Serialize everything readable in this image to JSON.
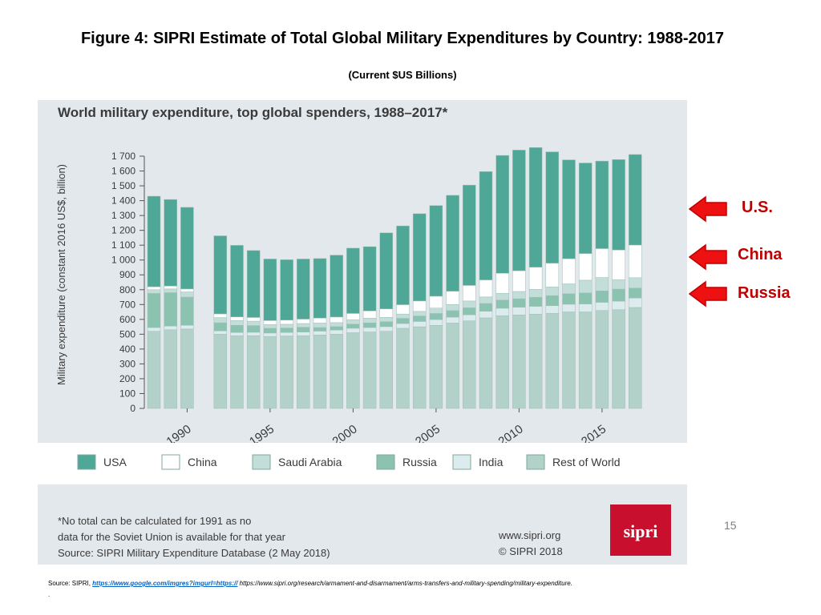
{
  "slide": {
    "title": "Figure 4: SIPRI Estimate of Total Global Military Expenditures by Country: 1988-2017",
    "subtitle": "(Current $US Billions)",
    "page_number": "15",
    "source_label": "Source: SIPRI,",
    "source_link": "https://www.google.com/imgres?imgurl=https://",
    "source_rest": "https://www.sipri.org/research/armament-and-disarmament/arms-transfers-and-military-spending/military-expenditure.",
    "trailing_dot": "."
  },
  "callouts": [
    {
      "label": "U.S.",
      "color": "#c00000"
    },
    {
      "label": "China",
      "color": "#c00000"
    },
    {
      "label": "Russia",
      "color": "#c00000"
    }
  ],
  "figure": {
    "footnote_1": "*No total can be calculated for 1991 as no",
    "footnote_2": "data for the Soviet Union is available for that year",
    "footnote_3": "Source: SIPRI Military Expenditure Database (2 May 2018)",
    "website": "www.sipri.org",
    "copyright": "© SIPRI 2018",
    "logo_text": "sipri",
    "logo_color": "#c8102e"
  },
  "chart_data": {
    "type": "bar",
    "stacked": true,
    "title": "World military expenditure, top global spenders, 1988–2017*",
    "ylabel": "Military expenditure (constant 2016 US$, billion)",
    "xlabel": "",
    "ylim": [
      0,
      1700
    ],
    "yticks": [
      0,
      100,
      200,
      300,
      400,
      500,
      600,
      700,
      800,
      900,
      1000,
      1100,
      1200,
      1300,
      1400,
      1500,
      1600,
      1700
    ],
    "ytick_labels": [
      "0",
      "100",
      "200",
      "300",
      "400",
      "500",
      "600",
      "700",
      "800",
      "900",
      "1 000",
      "1 100",
      "1 200",
      "1 300",
      "1 400",
      "1 500",
      "1 600",
      "1 700"
    ],
    "x_tick_labels": [
      "1990",
      "1995",
      "2000",
      "2005",
      "2010",
      "2015"
    ],
    "categories": [
      "1988",
      "1989",
      "1990",
      "1992",
      "1993",
      "1994",
      "1995",
      "1996",
      "1997",
      "1998",
      "1999",
      "2000",
      "2001",
      "2002",
      "2003",
      "2004",
      "2005",
      "2006",
      "2007",
      "2008",
      "2009",
      "2010",
      "2011",
      "2012",
      "2013",
      "2014",
      "2015",
      "2016",
      "2017"
    ],
    "series": [
      {
        "name": "Rest of World",
        "color": "#b2d1c8",
        "values": [
          520,
          530,
          535,
          500,
          490,
          490,
          485,
          488,
          490,
          495,
          500,
          510,
          515,
          520,
          540,
          550,
          560,
          575,
          590,
          610,
          625,
          630,
          635,
          640,
          650,
          650,
          660,
          665,
          680
        ]
      },
      {
        "name": "India",
        "color": "#dcecee",
        "values": [
          25,
          25,
          25,
          22,
          22,
          23,
          23,
          24,
          25,
          26,
          28,
          30,
          30,
          31,
          32,
          36,
          39,
          40,
          41,
          45,
          50,
          52,
          53,
          52,
          52,
          54,
          55,
          58,
          64
        ]
      },
      {
        "name": "Russia",
        "color": "#8cc2b0",
        "values": [
          230,
          225,
          190,
          55,
          48,
          45,
          32,
          30,
          32,
          24,
          23,
          28,
          31,
          33,
          35,
          37,
          41,
          44,
          47,
          52,
          55,
          57,
          61,
          68,
          71,
          74,
          77,
          81,
          67
        ]
      },
      {
        "name": "Saudi Arabia",
        "color": "#c3ddd9",
        "values": [
          25,
          25,
          35,
          35,
          32,
          30,
          25,
          25,
          25,
          30,
          27,
          30,
          32,
          30,
          29,
          31,
          36,
          41,
          46,
          44,
          46,
          49,
          53,
          59,
          66,
          86,
          90,
          64,
          70
        ]
      },
      {
        "name": "China",
        "color": "#ffffff",
        "values": [
          20,
          20,
          20,
          25,
          25,
          25,
          27,
          28,
          30,
          34,
          38,
          42,
          49,
          57,
          63,
          70,
          80,
          90,
          105,
          115,
          135,
          140,
          150,
          160,
          170,
          180,
          195,
          200,
          220
        ]
      },
      {
        "name": "USA",
        "color": "#4ea797",
        "values": [
          610,
          583,
          550,
          526,
          482,
          451,
          415,
          407,
          405,
          401,
          417,
          440,
          433,
          512,
          531,
          588,
          611,
          646,
          676,
          730,
          794,
          813,
          806,
          750,
          666,
          610,
          590,
          609,
          610
        ]
      }
    ]
  }
}
